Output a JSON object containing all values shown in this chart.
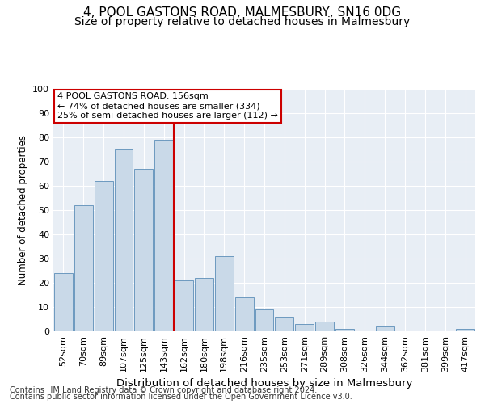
{
  "title": "4, POOL GASTONS ROAD, MALMESBURY, SN16 0DG",
  "subtitle": "Size of property relative to detached houses in Malmesbury",
  "xlabel": "Distribution of detached houses by size in Malmesbury",
  "ylabel": "Number of detached properties",
  "bin_labels": [
    "52sqm",
    "70sqm",
    "89sqm",
    "107sqm",
    "125sqm",
    "143sqm",
    "162sqm",
    "180sqm",
    "198sqm",
    "216sqm",
    "235sqm",
    "253sqm",
    "271sqm",
    "289sqm",
    "308sqm",
    "326sqm",
    "344sqm",
    "362sqm",
    "381sqm",
    "399sqm",
    "417sqm"
  ],
  "bar_values": [
    24,
    52,
    62,
    75,
    67,
    79,
    21,
    22,
    31,
    14,
    9,
    6,
    3,
    4,
    1,
    0,
    2,
    0,
    0,
    0,
    1
  ],
  "bar_color": "#c9d9e8",
  "bar_edge_color": "#5b8db8",
  "reference_line_label": "4 POOL GASTONS ROAD: 156sqm",
  "annotation_line1": "← 74% of detached houses are smaller (334)",
  "annotation_line2": "25% of semi-detached houses are larger (112) →",
  "annotation_box_color": "#ffffff",
  "annotation_box_edge": "#cc0000",
  "ref_line_color": "#cc0000",
  "footer1": "Contains HM Land Registry data © Crown copyright and database right 2024.",
  "footer2": "Contains public sector information licensed under the Open Government Licence v3.0.",
  "ylim": [
    0,
    100
  ],
  "bg_color": "#e8eef5",
  "title_fontsize": 11,
  "subtitle_fontsize": 10,
  "xlabel_fontsize": 9.5,
  "ylabel_fontsize": 8.5,
  "tick_fontsize": 8,
  "annot_fontsize": 8,
  "footer_fontsize": 7
}
